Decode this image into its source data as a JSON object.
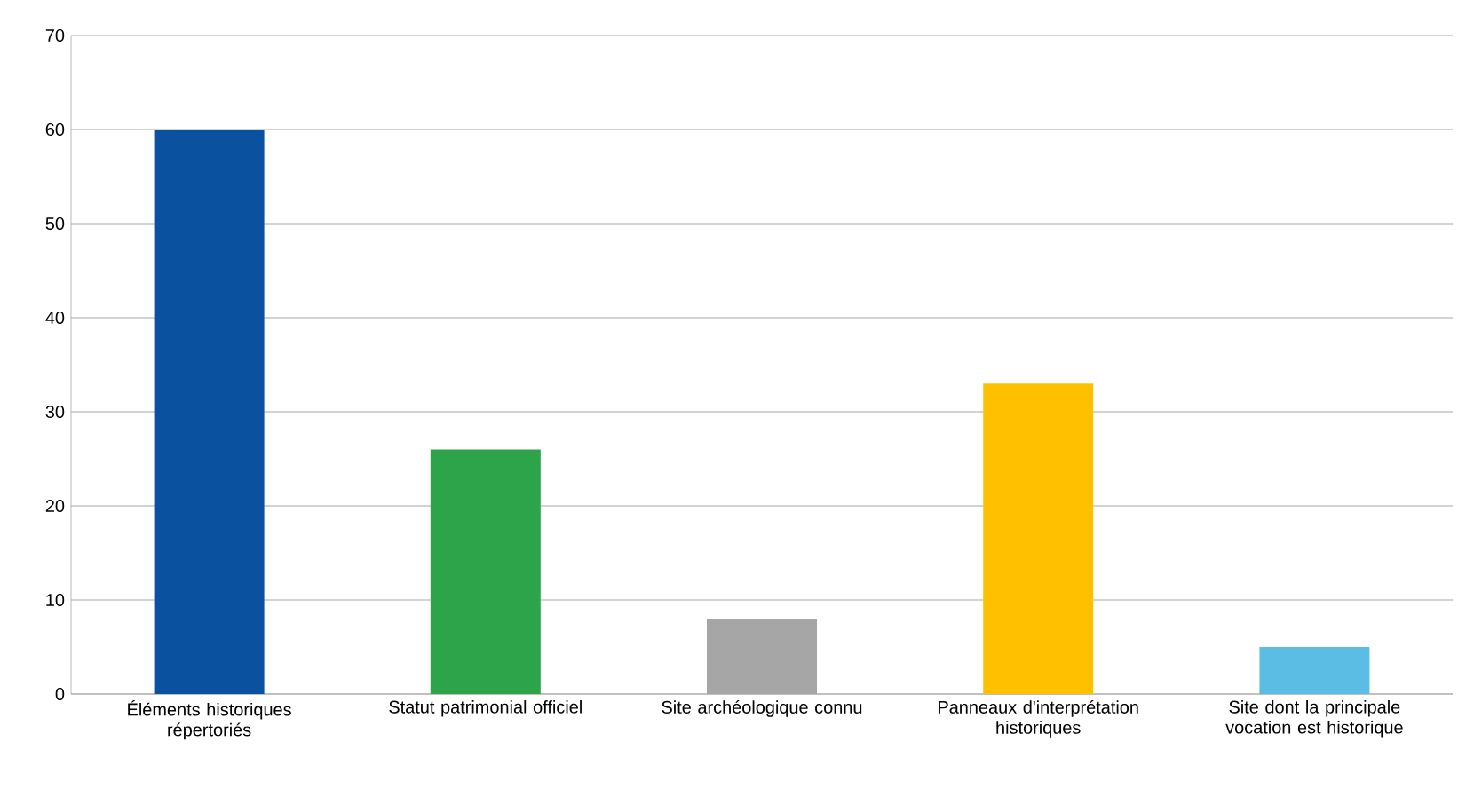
{
  "chart_data": {
    "type": "bar",
    "categories": [
      "Éléments historiques répertoriés",
      "Statut patrimonial officiel",
      "Site archéologique connu",
      "Panneaux d'interprétation historiques",
      "Site dont la principale vocation est historique"
    ],
    "values": [
      60,
      26,
      8,
      33,
      5
    ],
    "colors": [
      "#0a52a0",
      "#2ea44a",
      "#a6a6a6",
      "#ffc000",
      "#5bbde4"
    ],
    "ylim": [
      0,
      70
    ],
    "yticks": [
      0,
      10,
      20,
      30,
      40,
      50,
      60,
      70
    ],
    "grid": "y"
  }
}
